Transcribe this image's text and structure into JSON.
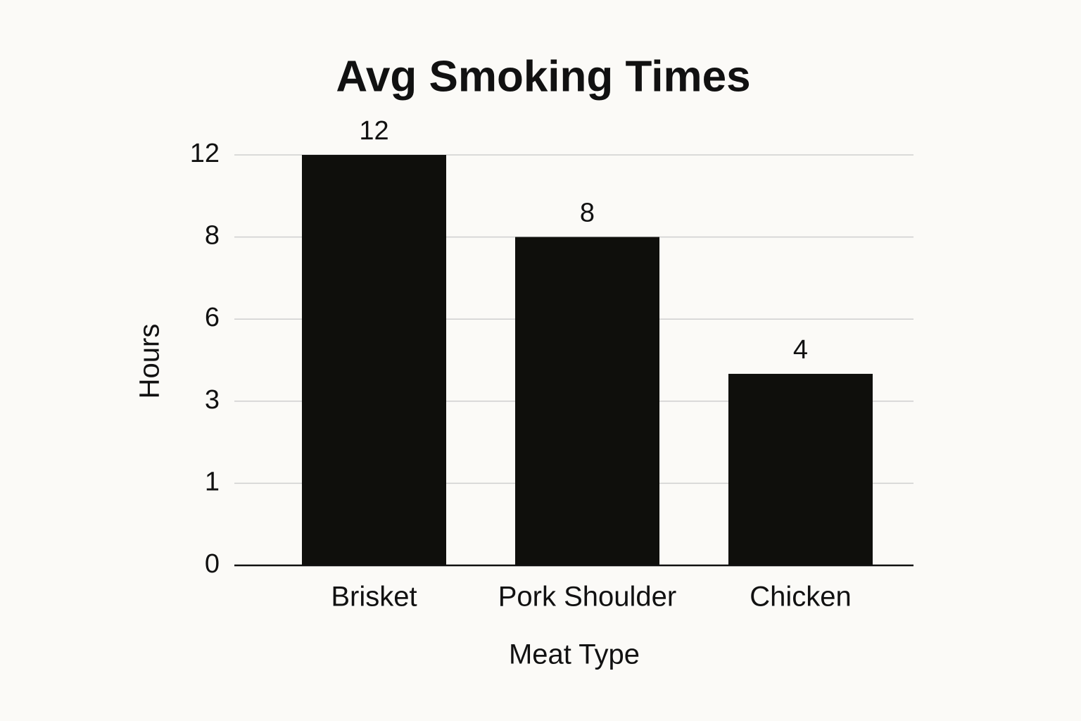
{
  "chart_data": {
    "type": "bar",
    "title": "Avg Smoking Times",
    "x_label": "Meat Type",
    "y_label": "Hours",
    "categories": [
      "Brisket",
      "Pork Shoulder",
      "Chicken"
    ],
    "values": [
      12,
      8,
      4
    ],
    "color": "#0f0f0c",
    "yticks": [
      0,
      1,
      3,
      6,
      8,
      12
    ],
    "grid": true
  }
}
